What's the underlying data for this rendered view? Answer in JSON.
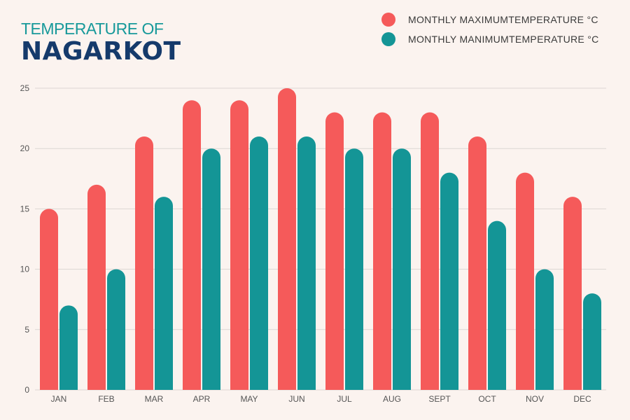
{
  "title": {
    "line1": "TEMPERATURE OF",
    "line2": "NAGARKOT"
  },
  "legend": [
    {
      "label": "MONTHLY MAXIMUMTEMPERATURE °C",
      "color": "#f55a5a"
    },
    {
      "label": "MONTHLY MANIMUMTEMPERATURE °C",
      "color": "#149596"
    }
  ],
  "chart_data": {
    "type": "bar",
    "categories": [
      "JAN",
      "FEB",
      "MAR",
      "APR",
      "MAY",
      "JUN",
      "JUL",
      "AUG",
      "SEPT",
      "OCT",
      "NOV",
      "DEC"
    ],
    "series": [
      {
        "name": "MONTHLY MAXIMUMTEMPERATURE °C",
        "color": "#f55a5a",
        "values": [
          15,
          17,
          21,
          24,
          24,
          25,
          23,
          23,
          23,
          21,
          18,
          16
        ]
      },
      {
        "name": "MONTHLY MANIMUMTEMPERATURE °C",
        "color": "#149596",
        "values": [
          7,
          10,
          16,
          20,
          21,
          21,
          20,
          20,
          18,
          14,
          10,
          8
        ]
      }
    ],
    "ylim": [
      0,
      25
    ],
    "yticks": [
      0,
      5,
      10,
      15,
      20,
      25
    ],
    "grid": true,
    "legend_position": "top-right"
  }
}
